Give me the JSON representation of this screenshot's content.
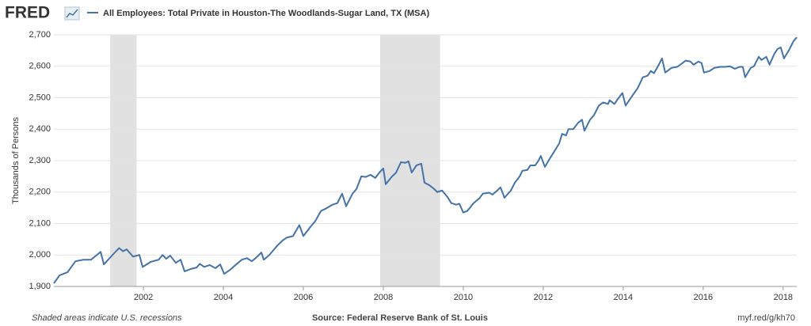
{
  "logo": "FRED",
  "chart_data": {
    "type": "line",
    "ylabel": "Thousands of Persons",
    "x": [
      1999.76,
      1999.9,
      2000.1,
      2000.3,
      2000.5,
      2000.69,
      2000.93,
      2001.01,
      2001.19,
      2001.39,
      2001.49,
      2001.58,
      2001.74,
      2001.9,
      2001.98,
      2002.18,
      2002.38,
      2002.48,
      2002.57,
      2002.67,
      2002.81,
      2002.93,
      2003.03,
      2003.17,
      2003.33,
      2003.41,
      2003.52,
      2003.66,
      2003.8,
      2003.92,
      2004.02,
      2004.16,
      2004.32,
      2004.46,
      2004.59,
      2004.71,
      2004.85,
      2004.95,
      2005.01,
      2005.15,
      2005.25,
      2005.35,
      2005.47,
      2005.58,
      2005.74,
      2005.9,
      2006.0,
      2006.18,
      2006.3,
      2006.44,
      2006.57,
      2006.73,
      2006.85,
      2006.97,
      2007.07,
      2007.23,
      2007.33,
      2007.45,
      2007.56,
      2007.68,
      2007.8,
      2007.92,
      2008.0,
      2008.06,
      2008.22,
      2008.32,
      2008.44,
      2008.55,
      2008.63,
      2008.71,
      2008.83,
      2008.95,
      2009.03,
      2009.15,
      2009.27,
      2009.35,
      2009.47,
      2009.6,
      2009.7,
      2009.82,
      2009.9,
      2010.0,
      2010.1,
      2010.26,
      2010.4,
      2010.49,
      2010.65,
      2010.73,
      2010.85,
      2010.93,
      2011.03,
      2011.19,
      2011.29,
      2011.41,
      2011.48,
      2011.6,
      2011.68,
      2011.8,
      2011.88,
      2011.94,
      2012.04,
      2012.18,
      2012.28,
      2012.4,
      2012.47,
      2012.57,
      2012.63,
      2012.75,
      2012.87,
      2012.97,
      2013.03,
      2013.17,
      2013.27,
      2013.39,
      2013.5,
      2013.62,
      2013.66,
      2013.78,
      2013.86,
      2013.98,
      2014.06,
      2014.22,
      2014.36,
      2014.49,
      2014.61,
      2014.69,
      2014.77,
      2014.89,
      2014.97,
      2015.05,
      2015.21,
      2015.35,
      2015.48,
      2015.56,
      2015.68,
      2015.76,
      2015.88,
      2015.96,
      2016.02,
      2016.16,
      2016.28,
      2016.43,
      2016.55,
      2016.67,
      2016.79,
      2016.91,
      2016.99,
      2017.05,
      2017.19,
      2017.27,
      2017.39,
      2017.46,
      2017.58,
      2017.66,
      2017.78,
      2017.86,
      2017.94,
      2018.02,
      2018.14,
      2018.26,
      2018.34
    ],
    "series": [
      {
        "name": "All Employees: Total Private in Houston-The Woodlands-Sugar Land, TX (MSA)",
        "color": "#4572a7",
        "values": [
          1910,
          1935,
          1945,
          1980,
          1985,
          1985,
          2010,
          1970,
          1995,
          2022,
          2012,
          2018,
          1995,
          2000,
          1962,
          1978,
          1985,
          2000,
          1988,
          1998,
          1975,
          1985,
          1948,
          1955,
          1960,
          1972,
          1962,
          1968,
          1958,
          1970,
          1940,
          1952,
          1970,
          1985,
          1990,
          1980,
          1995,
          2008,
          1985,
          2000,
          2015,
          2030,
          2045,
          2055,
          2060,
          2095,
          2060,
          2090,
          2108,
          2140,
          2148,
          2160,
          2165,
          2195,
          2155,
          2195,
          2210,
          2250,
          2248,
          2255,
          2245,
          2265,
          2275,
          2225,
          2250,
          2262,
          2295,
          2293,
          2298,
          2262,
          2285,
          2290,
          2230,
          2222,
          2210,
          2200,
          2205,
          2185,
          2165,
          2160,
          2163,
          2135,
          2140,
          2165,
          2180,
          2195,
          2198,
          2192,
          2205,
          2215,
          2182,
          2205,
          2230,
          2250,
          2268,
          2270,
          2285,
          2285,
          2300,
          2315,
          2280,
          2310,
          2330,
          2355,
          2385,
          2380,
          2400,
          2400,
          2420,
          2430,
          2395,
          2430,
          2445,
          2475,
          2485,
          2480,
          2492,
          2480,
          2495,
          2515,
          2475,
          2505,
          2530,
          2565,
          2570,
          2585,
          2578,
          2605,
          2625,
          2580,
          2595,
          2598,
          2610,
          2618,
          2615,
          2605,
          2615,
          2610,
          2580,
          2585,
          2595,
          2598,
          2598,
          2600,
          2592,
          2598,
          2598,
          2565,
          2595,
          2600,
          2630,
          2620,
          2630,
          2605,
          2640,
          2655,
          2660,
          2625,
          2650,
          2680,
          2692
        ]
      }
    ],
    "recessions": [
      [
        2001.17,
        2001.83
      ],
      [
        2007.92,
        2009.42
      ]
    ],
    "xlim": [
      1999.76,
      2018.34
    ],
    "xticks": [
      2002,
      2004,
      2006,
      2008,
      2010,
      2012,
      2014,
      2016,
      2018
    ],
    "ylim": [
      1900,
      2700
    ],
    "yticks": [
      {
        "value": 1900,
        "label": "1,900"
      },
      {
        "value": 2000,
        "label": "2,000"
      },
      {
        "value": 2100,
        "label": "2,100"
      },
      {
        "value": 2200,
        "label": "2,200"
      },
      {
        "value": 2300,
        "label": "2,300"
      },
      {
        "value": 2400,
        "label": "2,400"
      },
      {
        "value": 2500,
        "label": "2,500"
      },
      {
        "value": 2600,
        "label": "2,600"
      },
      {
        "value": 2700,
        "label": "2,700"
      }
    ],
    "grid": true
  },
  "footer": {
    "left": "Shaded areas indicate U.S. recessions",
    "center": "Source: Federal Reserve Bank of St. Louis",
    "right": "myf.red/g/kh70"
  }
}
